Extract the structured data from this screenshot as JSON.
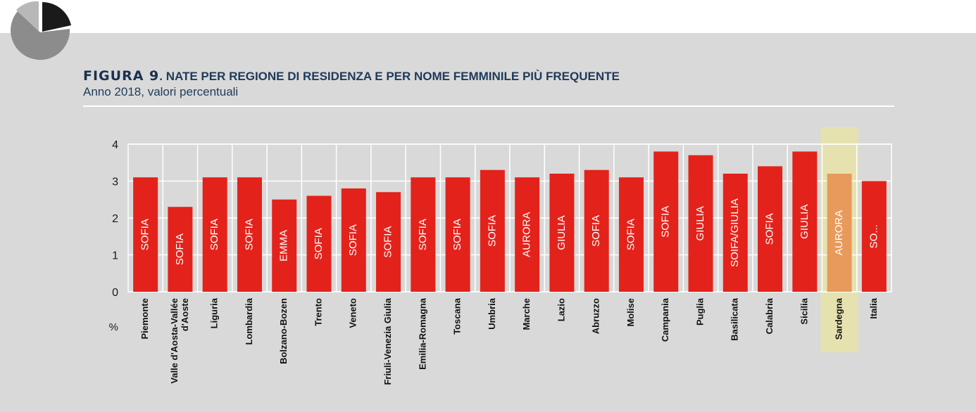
{
  "figure": {
    "label": "FIGURA 9",
    "title": ". NATE PER REGIONE DI RESIDENZA E PER NOME FEMMINILE PIÙ FREQUENTE",
    "subtitle": "Anno 2018, valori percentuali"
  },
  "colors": {
    "bar": "#e3231b",
    "highlight_bar": "#e89a5c",
    "highlight_band": "#e6e2b0",
    "highlight_label": "#9a9a5a",
    "highlight_bar_text": "#f5d2b0"
  },
  "chart_data": {
    "type": "bar",
    "ylabel": "%",
    "ylim": [
      0,
      4
    ],
    "yticks": [
      0,
      1,
      2,
      3,
      4
    ],
    "grid": true,
    "highlight_category": "Sardegna",
    "categories": [
      [
        "Piemonte"
      ],
      [
        "Valle d'Aosta-Vallée",
        "d'Aoste"
      ],
      [
        "Liguria"
      ],
      [
        "Lombardia"
      ],
      [
        "Bolzano-Bozen"
      ],
      [
        "Trento"
      ],
      [
        "Veneto"
      ],
      [
        "Friuli-Venezia Giulia"
      ],
      [
        "Emilia-Romagna"
      ],
      [
        "Toscana"
      ],
      [
        "Umbria"
      ],
      [
        "Marche"
      ],
      [
        "Lazio"
      ],
      [
        "Abruzzo"
      ],
      [
        "Molise"
      ],
      [
        "Campania"
      ],
      [
        "Puglia"
      ],
      [
        "Basilicata"
      ],
      [
        "Calabria"
      ],
      [
        "Sicilia"
      ],
      [
        "Sardegna"
      ],
      [
        "Italia"
      ]
    ],
    "values": [
      3.1,
      2.3,
      3.1,
      3.1,
      2.5,
      2.6,
      2.8,
      2.7,
      3.1,
      3.1,
      3.3,
      3.1,
      3.2,
      3.3,
      3.1,
      3.8,
      3.7,
      3.2,
      3.4,
      3.8,
      3.2,
      3.0
    ],
    "data_labels": [
      "SOFIA",
      "SOFIA",
      "SOFIA",
      "SOFIA",
      "EMMA",
      "SOFIA",
      "SOFIA",
      "SOFIA",
      "SOFIA",
      "SOFIA",
      "SOFIA",
      "AURORA",
      "GIULIA",
      "SOFIA",
      "SOFIA",
      "SOFIA",
      "GIULIA",
      "SOIFA/GIULIA",
      "SOFIA",
      "GIULIA",
      "AURORA",
      "SO..."
    ]
  }
}
